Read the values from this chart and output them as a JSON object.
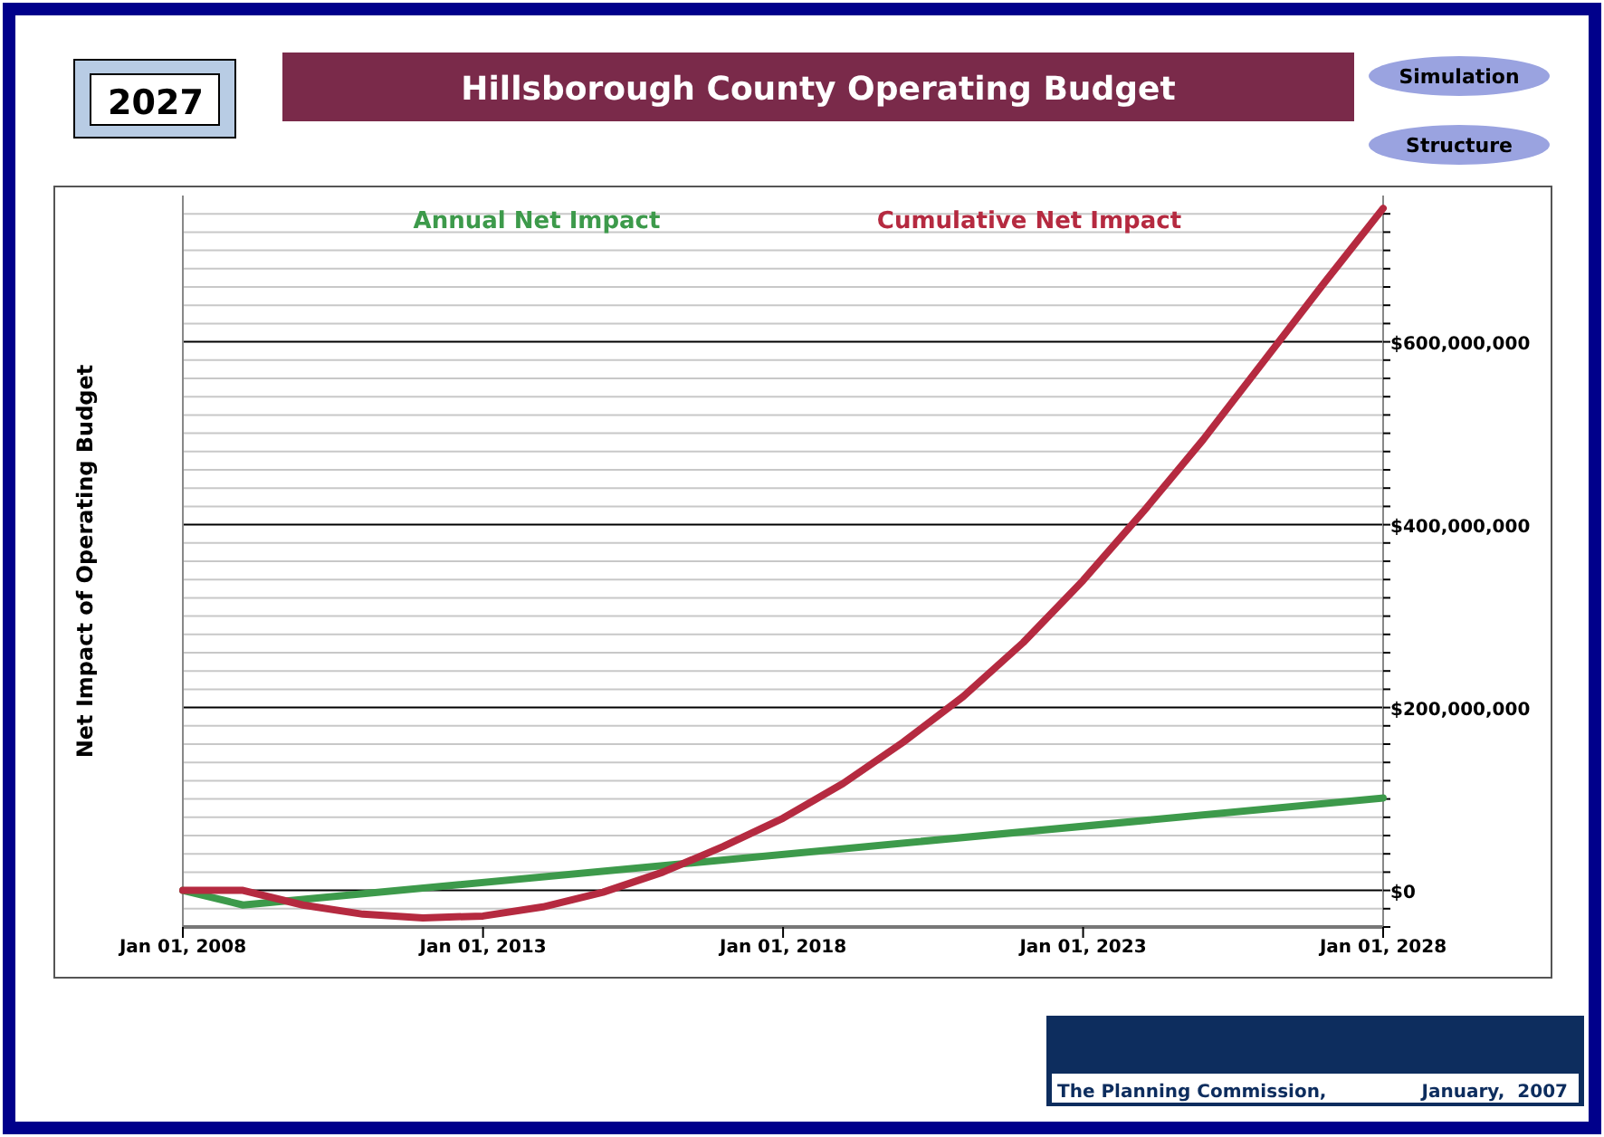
{
  "chart_data": {
    "type": "line",
    "title": "Hillsborough County Operating Budget",
    "ylabel": "Net Impact of Operating Budget",
    "x": [
      "2008",
      "2009",
      "2010",
      "2011",
      "2012",
      "2013",
      "2014",
      "2015",
      "2016",
      "2017",
      "2018",
      "2019",
      "2020",
      "2021",
      "2022",
      "2023",
      "2024",
      "2025",
      "2026",
      "2027",
      "2028"
    ],
    "series": [
      {
        "name": "Annual Net Impact",
        "color": "#3d9a4b",
        "x": [
          "2008",
          "2009",
          "2028"
        ],
        "values": [
          0,
          -16000000,
          101000000
        ]
      },
      {
        "name": "Cumulative Net Impact",
        "color": "#b52a40",
        "values": [
          0,
          0,
          -16000000,
          -26000000,
          -30000000,
          -28000000,
          -18000000,
          -2000000,
          20000000,
          48000000,
          79000000,
          117000000,
          162000000,
          212000000,
          271000000,
          339000000,
          414000000,
          493000000,
          578000000,
          663000000,
          746000000
        ]
      }
    ],
    "xlim": [
      "2008",
      "2028"
    ],
    "xticks": [
      {
        "value": "2008",
        "label": "Jan 01, 2008"
      },
      {
        "value": "2013",
        "label": "Jan 01, 2013"
      },
      {
        "value": "2018",
        "label": "Jan 01, 2018"
      },
      {
        "value": "2023",
        "label": "Jan 01, 2023"
      },
      {
        "value": "2028",
        "label": "Jan 01, 2028"
      }
    ],
    "ylim": [
      -40000000,
      760000000
    ],
    "yticks": [
      {
        "value": -40000000,
        "label": null
      },
      {
        "value": -20000000,
        "label": null
      },
      {
        "value": 0,
        "label": "$0"
      },
      {
        "value": 20000000,
        "label": null
      },
      {
        "value": 40000000,
        "label": null
      },
      {
        "value": 60000000,
        "label": null
      },
      {
        "value": 80000000,
        "label": null
      },
      {
        "value": 100000000,
        "label": null
      },
      {
        "value": 120000000,
        "label": null
      },
      {
        "value": 140000000,
        "label": null
      },
      {
        "value": 160000000,
        "label": null
      },
      {
        "value": 180000000,
        "label": null
      },
      {
        "value": 200000000,
        "label": "$200,000,000"
      },
      {
        "value": 220000000,
        "label": null
      },
      {
        "value": 240000000,
        "label": null
      },
      {
        "value": 260000000,
        "label": null
      },
      {
        "value": 280000000,
        "label": null
      },
      {
        "value": 300000000,
        "label": null
      },
      {
        "value": 320000000,
        "label": null
      },
      {
        "value": 340000000,
        "label": null
      },
      {
        "value": 360000000,
        "label": null
      },
      {
        "value": 380000000,
        "label": null
      },
      {
        "value": 400000000,
        "label": "$400,000,000"
      },
      {
        "value": 420000000,
        "label": null
      },
      {
        "value": 440000000,
        "label": null
      },
      {
        "value": 460000000,
        "label": null
      },
      {
        "value": 480000000,
        "label": null
      },
      {
        "value": 500000000,
        "label": null
      },
      {
        "value": 520000000,
        "label": null
      },
      {
        "value": 540000000,
        "label": null
      },
      {
        "value": 560000000,
        "label": null
      },
      {
        "value": 580000000,
        "label": null
      },
      {
        "value": 600000000,
        "label": "$600,000,000"
      },
      {
        "value": 620000000,
        "label": null
      },
      {
        "value": 640000000,
        "label": null
      },
      {
        "value": 660000000,
        "label": null
      },
      {
        "value": 680000000,
        "label": null
      },
      {
        "value": 700000000,
        "label": null
      },
      {
        "value": 720000000,
        "label": null
      },
      {
        "value": 740000000,
        "label": null
      }
    ],
    "grid": "y",
    "legend": "top",
    "marker": "none",
    "line_style": "solid",
    "annotations": [
      "2027",
      "Simulation",
      "Structure",
      "The Planning Commission,",
      "January,  2007"
    ]
  }
}
